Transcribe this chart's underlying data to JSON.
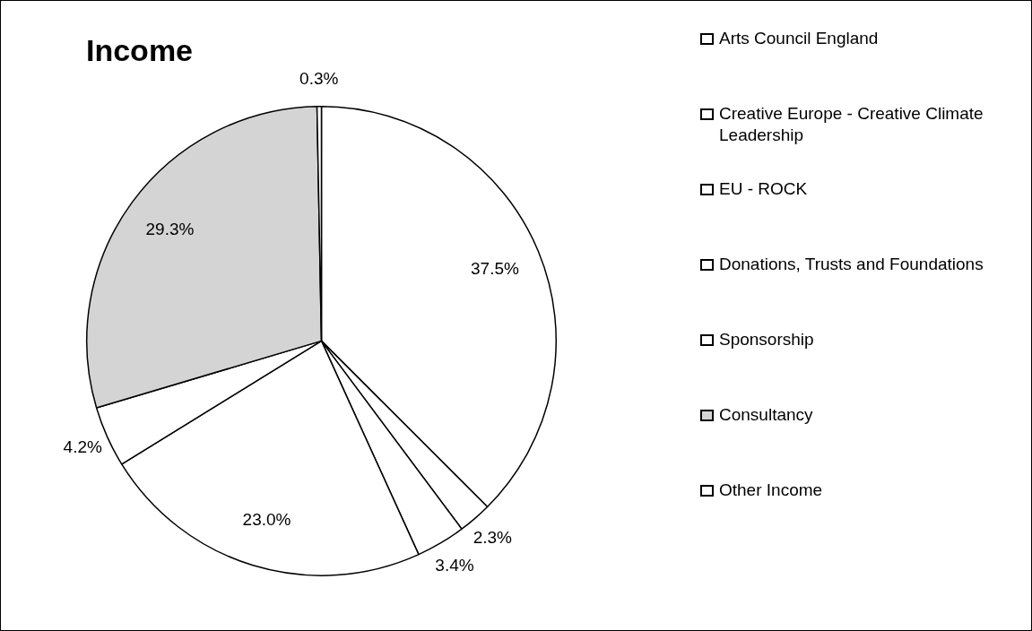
{
  "chart_data": {
    "type": "pie",
    "title": "Income",
    "categories": [
      "Arts Council England",
      "Creative Europe - Creative Climate Leadership",
      "EU - ROCK",
      "Donations, Trusts and Foundations",
      "Sponsorship",
      "Consultancy",
      "Other Income"
    ],
    "values": [
      37.5,
      2.3,
      3.4,
      23.0,
      4.2,
      29.3,
      0.3
    ],
    "value_labels": [
      "37.5%",
      "2.3%",
      "3.4%",
      "23.0%",
      "4.2%",
      "29.3%",
      "0.3%"
    ],
    "colors": [
      "#ffffff",
      "#ffffff",
      "#ffffff",
      "#ffffff",
      "#ffffff",
      "#d4d4d4",
      "#ffffff"
    ],
    "legend": "right"
  }
}
